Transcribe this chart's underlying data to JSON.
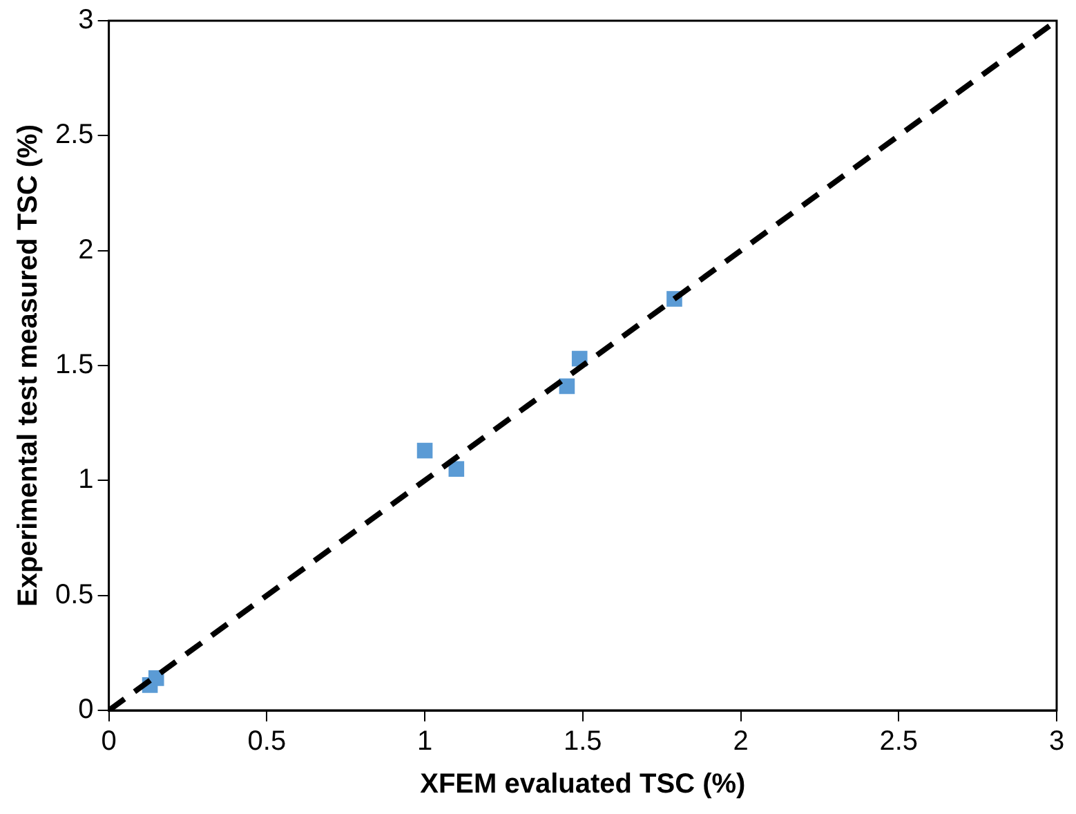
{
  "chart_data": {
    "type": "scatter",
    "xlabel": "XFEM evaluated TSC (%)",
    "ylabel": "Experimental test measured TSC (%)",
    "xlim": [
      0,
      3
    ],
    "ylim": [
      0,
      3
    ],
    "xticks": [
      0,
      0.5,
      1,
      1.5,
      2,
      2.5,
      3
    ],
    "yticks": [
      0,
      0.5,
      1,
      1.5,
      2,
      2.5,
      3
    ],
    "grid": false,
    "legend": false,
    "series": [
      {
        "color": "#5b9bd5",
        "marker": "square",
        "x": [
          0.13,
          0.15,
          1.0,
          1.1,
          1.45,
          1.49,
          1.79
        ],
        "values": [
          0.11,
          0.14,
          1.13,
          1.05,
          1.41,
          1.53,
          1.79
        ]
      },
      {
        "type": "line",
        "color": "#000000",
        "line_style": "dashed",
        "marker": "none",
        "x": [
          0,
          3
        ],
        "values": [
          0,
          3
        ]
      }
    ]
  }
}
